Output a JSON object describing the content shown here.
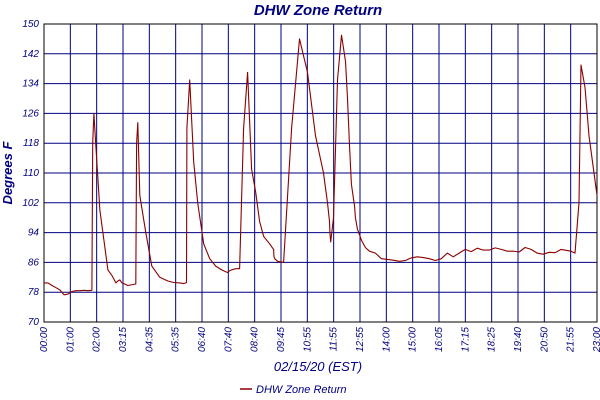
{
  "chart_data": {
    "type": "line",
    "title": "DHW Zone Return",
    "xlabel": "02/15/20 (EST)",
    "ylabel": "Degrees F",
    "ylim": [
      70,
      150
    ],
    "yticks": [
      70,
      78,
      86,
      94,
      102,
      110,
      118,
      126,
      134,
      142,
      150
    ],
    "xlim": [
      0,
      1385
    ],
    "xtick_labels": [
      "00:00",
      "01:00",
      "02:00",
      "03:15",
      "04:35",
      "05:35",
      "06:40",
      "07:40",
      "08:40",
      "09:45",
      "10:55",
      "11:55",
      "12:55",
      "14:00",
      "15:00",
      "16:05",
      "17:15",
      "18:25",
      "19:40",
      "20:50",
      "21:55",
      "23:00"
    ],
    "grid": true,
    "legend_position": "bottom-center",
    "series": [
      {
        "name": "DHW Zone Return",
        "color": "#8b0000",
        "x_minutes": [
          0,
          10,
          20,
          30,
          40,
          50,
          60,
          70,
          80,
          90,
          100,
          110,
          120,
          122,
          125,
          130,
          140,
          150,
          160,
          170,
          180,
          185,
          190,
          195,
          200,
          210,
          230,
          232,
          235,
          240,
          255,
          270,
          290,
          310,
          325,
          340,
          350,
          357,
          358,
          365,
          375,
          385,
          400,
          415,
          430,
          445,
          455,
          460,
          465,
          470,
          480,
          490,
          500,
          510,
          520,
          530,
          540,
          550,
          565,
          575,
          576,
          578,
          585,
          600,
          620,
          640,
          660,
          680,
          700,
          710,
          715,
          716,
          718,
          725,
          735,
          745,
          755,
          760,
          765,
          770,
          778,
          780,
          785,
          795,
          805,
          815,
          830,
          845,
          860,
          875,
          890,
          905,
          920,
          935,
          950,
          965,
          980,
          995,
          1010,
          1025,
          1040,
          1055,
          1070,
          1085,
          1100,
          1115,
          1130,
          1145,
          1160,
          1175,
          1190,
          1205,
          1220,
          1235,
          1250,
          1265,
          1280,
          1295,
          1320,
          1330,
          1340,
          1345,
          1355,
          1365,
          1375,
          1385
        ],
        "values": [
          80.5,
          80.5,
          79.8,
          79.2,
          78.6,
          77.3,
          77.5,
          78.2,
          78.4,
          78.4,
          78.5,
          78.4,
          78.5,
          118,
          126,
          117,
          100,
          92,
          84,
          82.5,
          80.5,
          81,
          81.3,
          80.5,
          80.3,
          79.8,
          80.2,
          118,
          123.5,
          104,
          94,
          85,
          82,
          81,
          80.6,
          80.5,
          80.3,
          80.6,
          122,
          135,
          113,
          102,
          91,
          87,
          85,
          84,
          83.5,
          83.3,
          83.8,
          84,
          84.3,
          84.3,
          122,
          137,
          111,
          105,
          97,
          93,
          91,
          89.5,
          87.5,
          87,
          86.3,
          86,
          122,
          146,
          137,
          120,
          110,
          102,
          97,
          94,
          91.5,
          98,
          135,
          147,
          140,
          130,
          118,
          107,
          101,
          98,
          95,
          92,
          90,
          89,
          88.5,
          87,
          86.8,
          86.6,
          86.3,
          86.5,
          87.2,
          87.5,
          87.3,
          87,
          86.5,
          87,
          88.5,
          87.5,
          88.5,
          89.5,
          88.9,
          89.8,
          89.3,
          89.3,
          89.9,
          89.5,
          89,
          89,
          88.8,
          90,
          89.5,
          88.5,
          88.2,
          88.7,
          88.6,
          89.5,
          89,
          88.5,
          102,
          139,
          133,
          120,
          112,
          104
        ]
      }
    ]
  }
}
